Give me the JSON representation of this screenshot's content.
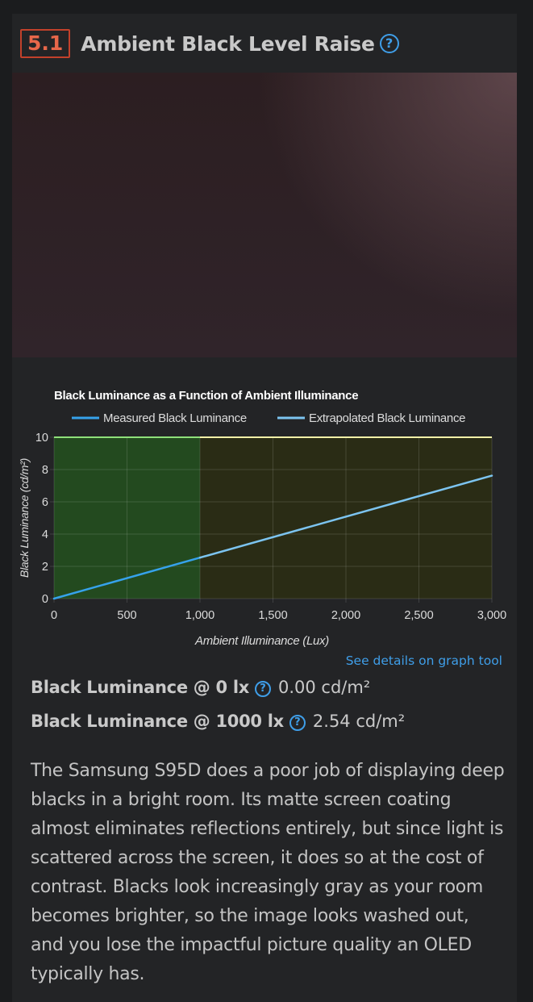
{
  "section": {
    "number": "5.1",
    "title": "Ambient Black Level Raise"
  },
  "details_link": "See details on graph tool",
  "stats": [
    {
      "label": "Black Luminance @ 0 lx",
      "value": "0.00 cd/m²"
    },
    {
      "label": "Black Luminance @ 1000 lx",
      "value": "2.54 cd/m²"
    }
  ],
  "description": "The Samsung S95D does a poor job of displaying deep blacks in a bright room. Its matte screen coating almost eliminates reflections entirely, but since light is scattered across the screen, it does so at the cost of contrast. Blacks look increasingly gray as your room becomes brighter, so the image looks washed out, and you lose the impactful picture quality an OLED typically has.",
  "colors": {
    "accent": "#3f9ee8",
    "badge": "#e8674a",
    "measured": "#36a2eb",
    "extrapolated": "#7cc4f0",
    "region_measured": "#234a1f",
    "region_extrapolated": "#2a2c15",
    "top_measured": "#8fe07a",
    "top_extrapolated": "#f2f0a8"
  },
  "chart_data": {
    "type": "line",
    "title": "Black Luminance as a Function of Ambient Illuminance",
    "xlabel": "Ambient Illuminance (Lux)",
    "ylabel": "Black Luminance (cd/m²)",
    "xlim": [
      0,
      3000
    ],
    "ylim": [
      0,
      10
    ],
    "x_ticks": [
      "0",
      "500",
      "1,000",
      "1,500",
      "2,000",
      "2,500",
      "3,000"
    ],
    "x_tick_values": [
      0,
      500,
      1000,
      1500,
      2000,
      2500,
      3000
    ],
    "y_ticks": [
      "0",
      "2",
      "4",
      "6",
      "8",
      "10"
    ],
    "y_tick_values": [
      0,
      2,
      4,
      6,
      8,
      10
    ],
    "grid": true,
    "legend_position": "top",
    "series": [
      {
        "name": "Measured Black Luminance",
        "x": [
          0,
          1000
        ],
        "y": [
          0.0,
          2.54
        ]
      },
      {
        "name": "Extrapolated Black Luminance",
        "x": [
          1000,
          3000
        ],
        "y": [
          2.54,
          7.62
        ]
      }
    ]
  }
}
